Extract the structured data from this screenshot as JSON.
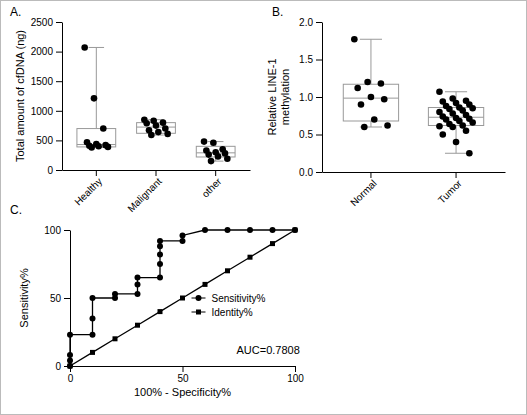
{
  "chart_data": [
    {
      "type": "box",
      "title": "A.",
      "y_label": "Total amount of cfDNA (ng)",
      "categories": [
        "Healthy",
        "Malignant",
        "other"
      ],
      "values": [
        [
          2070,
          1210,
          700,
          470,
          440,
          420,
          410,
          400,
          390,
          380
        ],
        [
          850,
          830,
          800,
          790,
          750,
          700,
          670,
          640,
          610,
          590
        ],
        [
          480,
          460,
          350,
          330,
          300,
          280,
          260,
          230,
          190,
          150
        ]
      ],
      "box": [
        {
          "min": 380,
          "q1": 390,
          "median": 430,
          "q3": 700,
          "max": 2070
        },
        {
          "min": 590,
          "q1": 620,
          "median": 725,
          "q3": 800,
          "max": 850
        },
        {
          "min": 150,
          "q1": 220,
          "median": 290,
          "q3": 400,
          "max": 480
        }
      ],
      "ylim": [
        0,
        2500
      ],
      "yticks": [
        0,
        500,
        1000,
        1500,
        2000,
        2500
      ],
      "color": "#000000"
    },
    {
      "type": "box",
      "title": "B.",
      "y_label": "Relative LINE-1\nmethylation",
      "categories": [
        "Normal",
        "Tumor"
      ],
      "values": [
        [
          1.77,
          1.2,
          1.18,
          1.12,
          1.0,
          0.97,
          0.9,
          0.7,
          0.62,
          0.6
        ],
        [
          1.07,
          0.98,
          0.95,
          0.94,
          0.92,
          0.9,
          0.88,
          0.86,
          0.85,
          0.84,
          0.82,
          0.8,
          0.78,
          0.76,
          0.74,
          0.72,
          0.71,
          0.7,
          0.68,
          0.66,
          0.64,
          0.62,
          0.61,
          0.6,
          0.55,
          0.5,
          0.4,
          0.25
        ]
      ],
      "box": [
        {
          "min": 0.6,
          "q1": 0.68,
          "median": 0.985,
          "q3": 1.17,
          "max": 1.77
        },
        {
          "min": 0.25,
          "q1": 0.62,
          "median": 0.73,
          "q3": 0.86,
          "max": 1.07
        }
      ],
      "ylim": [
        0,
        2
      ],
      "yticks": [
        {
          "value": 0,
          "label": "0.0"
        },
        0.5,
        {
          "value": 1,
          "label": "1.0"
        },
        1.5,
        {
          "value": 2,
          "label": "2.0"
        }
      ],
      "color": "#000000"
    },
    {
      "type": "line",
      "title": "C.",
      "x_label": "100% - Specificity%",
      "y_label": "Sensitivity%",
      "series": [
        {
          "name": "Sensitivity%",
          "color": "#000000",
          "marker": "circle",
          "x": [
            0,
            0,
            0,
            0,
            10,
            10,
            10,
            20,
            20,
            30,
            30,
            30,
            40,
            40,
            40,
            40,
            40,
            50,
            50,
            60,
            70,
            80,
            90,
            100
          ],
          "values": [
            0,
            4,
            8,
            23,
            23,
            35,
            50,
            50,
            53,
            53,
            60,
            65,
            65,
            75,
            82,
            88,
            92,
            92,
            96,
            100,
            100,
            100,
            100,
            100
          ]
        },
        {
          "name": "Identity%",
          "color": "#000000",
          "marker": "square",
          "x": [
            0,
            10,
            20,
            30,
            40,
            50,
            60,
            70,
            80,
            90,
            100
          ],
          "values": [
            0,
            10,
            20,
            30,
            40,
            50,
            60,
            70,
            80,
            90,
            100
          ]
        }
      ],
      "annotation": "AUC=0.7808",
      "xlim": [
        0,
        100
      ],
      "ylim": [
        0,
        100
      ],
      "xticks": [
        0,
        50,
        100
      ],
      "yticks": [
        0,
        50,
        100
      ],
      "legend": "right"
    }
  ]
}
